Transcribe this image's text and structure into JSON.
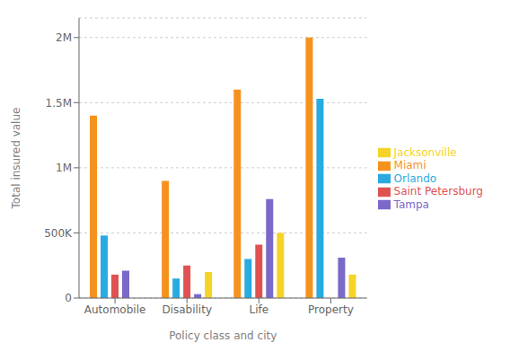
{
  "chart_data": {
    "type": "bar",
    "xlabel": "Policy class and city",
    "ylabel": "Total insured value",
    "categories": [
      "Automobile",
      "Disability",
      "Life",
      "Property"
    ],
    "series": [
      {
        "name": "Miami",
        "color": "#f5921e",
        "values": [
          1400000,
          900000,
          1600000,
          2000000
        ]
      },
      {
        "name": "Orlando",
        "color": "#29abe2",
        "values": [
          480000,
          150000,
          300000,
          1530000
        ]
      },
      {
        "name": "Saint Petersburg",
        "color": "#e05252",
        "values": [
          180000,
          250000,
          410000,
          0
        ]
      },
      {
        "name": "Tampa",
        "color": "#7b68c8",
        "values": [
          210000,
          30000,
          760000,
          310000
        ]
      },
      {
        "name": "Jacksonville",
        "color": "#f5d327",
        "values": [
          0,
          200000,
          500000,
          180000
        ]
      }
    ],
    "ylim": [
      0,
      2150000
    ],
    "yticks": [
      0,
      {
        "value": 500000,
        "label": "500K"
      },
      {
        "value": 1000000,
        "label": "1M"
      },
      {
        "value": 1500000,
        "label": "1.5M"
      },
      {
        "value": 2000000,
        "label": "2M"
      }
    ],
    "grid": true,
    "legend": "right"
  }
}
